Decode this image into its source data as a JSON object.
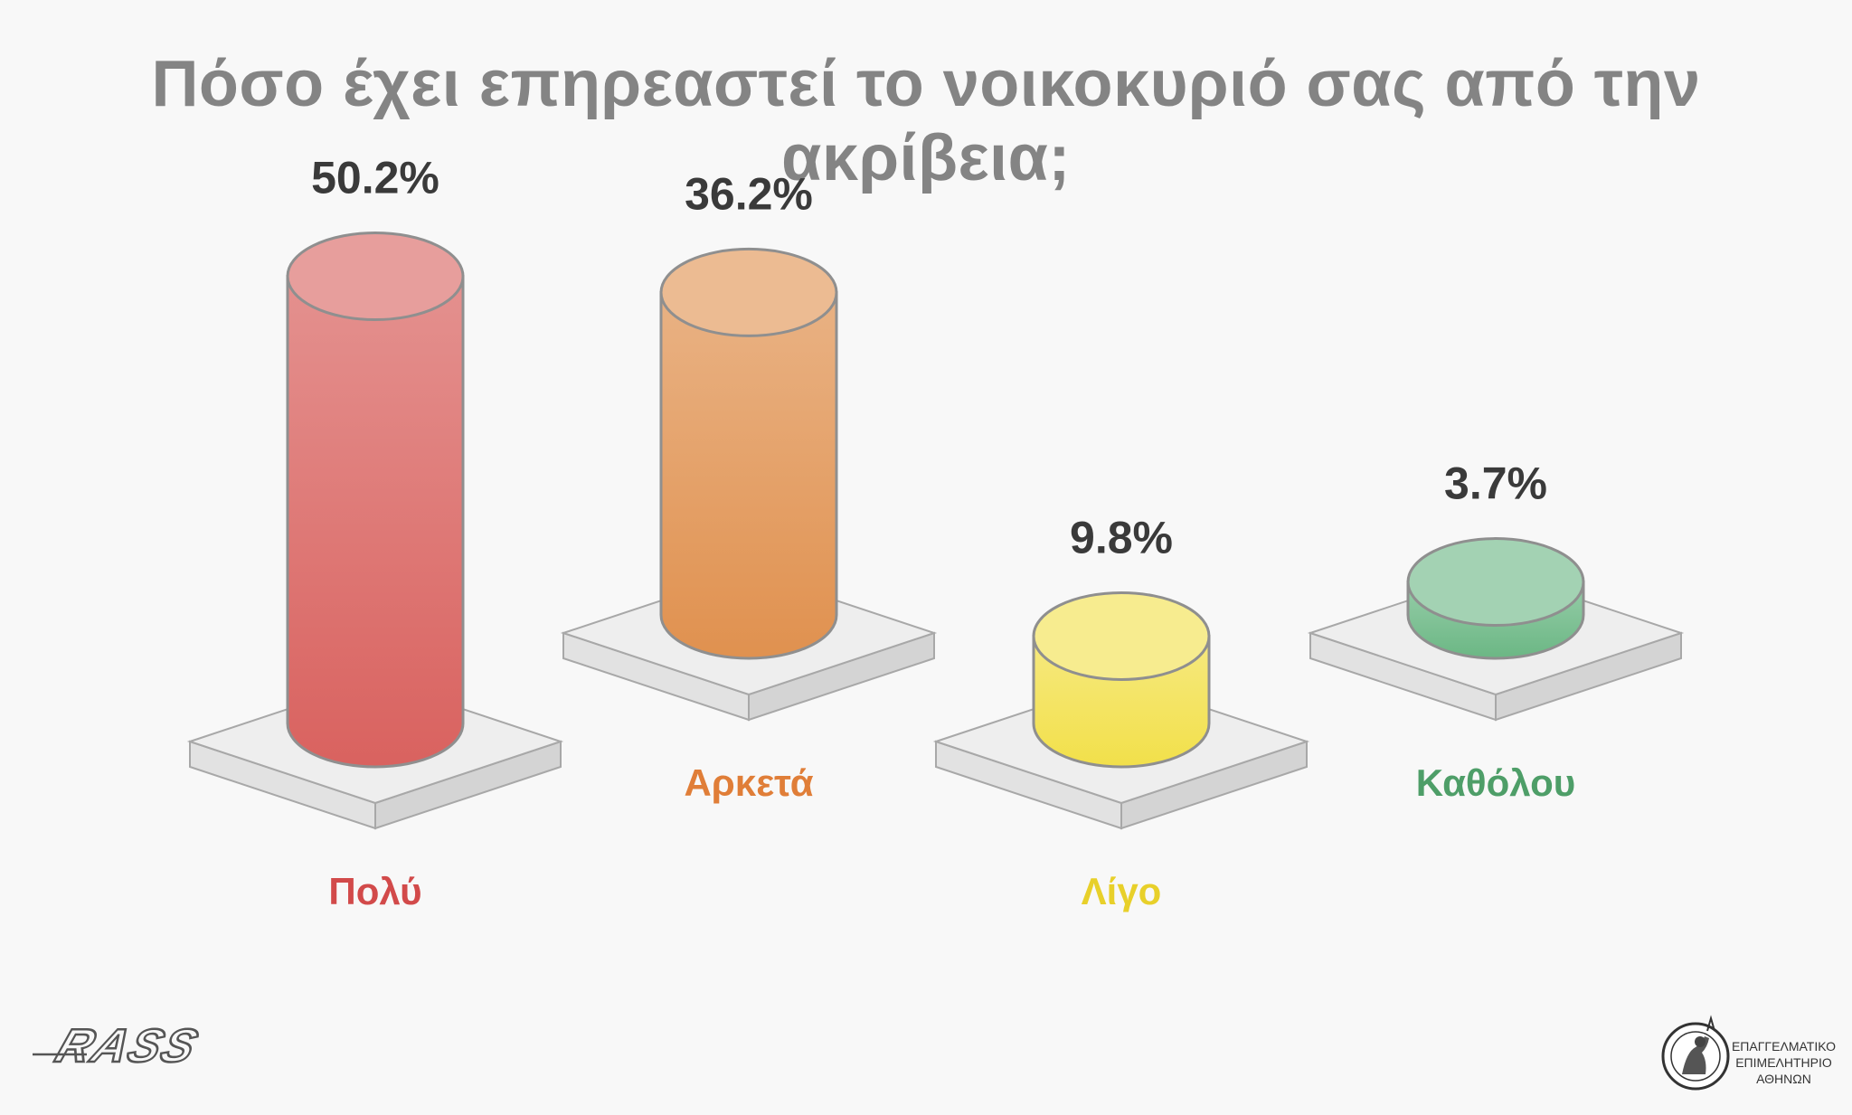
{
  "chart_data": {
    "type": "bar",
    "title": "Πόσο έχει επηρεαστεί το νοικοκυριό σας από την ακρίβεια;",
    "categories": [
      "Πολύ",
      "Αρκετά",
      "Λίγο",
      "Καθόλου"
    ],
    "values": [
      50.2,
      36.2,
      9.8,
      3.7
    ],
    "value_labels": [
      "50.2%",
      "36.2%",
      "9.8%",
      "3.7%"
    ],
    "colors": [
      "#d9625f",
      "#e0914f",
      "#f2e04a",
      "#6bb784"
    ],
    "label_colors": [
      "#d24a4a",
      "#e07e38",
      "#e8d02a",
      "#4e9e68"
    ]
  },
  "logos": {
    "left": "RASS",
    "right_lines": [
      "ΕΠΑΓΓΕΛΜΑΤΙΚΟ",
      "ΕΠΙΜΕΛΗΤΗΡΙΟ",
      "ΑΘΗΝΩΝ"
    ]
  }
}
